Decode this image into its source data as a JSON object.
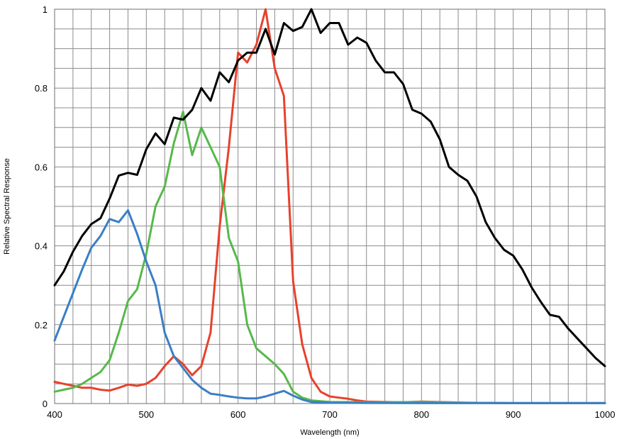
{
  "chart_data": {
    "type": "line",
    "title": "",
    "xlabel": "Wavelength (nm)",
    "ylabel": "Relative Spectral Response",
    "xlim": [
      400,
      1000
    ],
    "ylim": [
      0,
      1
    ],
    "x_ticks": [
      "400",
      "500",
      "600",
      "700",
      "800",
      "900",
      "1000"
    ],
    "y_ticks": [
      "0",
      "0.2",
      "0.4",
      "0.6",
      "0.8",
      "1"
    ],
    "grid": true,
    "legend": "none",
    "series": [
      {
        "color": "#e8412c",
        "points": [
          [
            400,
            0.055
          ],
          [
            410,
            0.05
          ],
          [
            420,
            0.045
          ],
          [
            430,
            0.04
          ],
          [
            440,
            0.04
          ],
          [
            450,
            0.035
          ],
          [
            460,
            0.033
          ],
          [
            470,
            0.04
          ],
          [
            480,
            0.048
          ],
          [
            490,
            0.045
          ],
          [
            500,
            0.05
          ],
          [
            510,
            0.065
          ],
          [
            520,
            0.095
          ],
          [
            530,
            0.12
          ],
          [
            540,
            0.1
          ],
          [
            550,
            0.072
          ],
          [
            560,
            0.095
          ],
          [
            570,
            0.18
          ],
          [
            580,
            0.45
          ],
          [
            590,
            0.65
          ],
          [
            600,
            0.89
          ],
          [
            610,
            0.865
          ],
          [
            620,
            0.91
          ],
          [
            630,
            1.0
          ],
          [
            640,
            0.85
          ],
          [
            650,
            0.78
          ],
          [
            660,
            0.31
          ],
          [
            670,
            0.15
          ],
          [
            680,
            0.065
          ],
          [
            690,
            0.03
          ],
          [
            700,
            0.018
          ],
          [
            710,
            0.015
          ],
          [
            720,
            0.012
          ],
          [
            730,
            0.008
          ],
          [
            740,
            0.005
          ],
          [
            760,
            0.004
          ],
          [
            780,
            0.003
          ],
          [
            800,
            0.005
          ],
          [
            850,
            0.002
          ],
          [
            900,
            0.001
          ],
          [
            950,
            0.001
          ],
          [
            1000,
            0.001
          ]
        ]
      },
      {
        "color": "#56b94a",
        "points": [
          [
            400,
            0.03
          ],
          [
            410,
            0.035
          ],
          [
            420,
            0.04
          ],
          [
            430,
            0.05
          ],
          [
            440,
            0.065
          ],
          [
            450,
            0.08
          ],
          [
            460,
            0.11
          ],
          [
            470,
            0.18
          ],
          [
            480,
            0.26
          ],
          [
            490,
            0.29
          ],
          [
            500,
            0.38
          ],
          [
            510,
            0.5
          ],
          [
            520,
            0.55
          ],
          [
            530,
            0.66
          ],
          [
            540,
            0.74
          ],
          [
            550,
            0.63
          ],
          [
            560,
            0.7
          ],
          [
            570,
            0.65
          ],
          [
            580,
            0.6
          ],
          [
            590,
            0.42
          ],
          [
            600,
            0.36
          ],
          [
            610,
            0.2
          ],
          [
            620,
            0.14
          ],
          [
            630,
            0.12
          ],
          [
            640,
            0.1
          ],
          [
            650,
            0.075
          ],
          [
            660,
            0.03
          ],
          [
            670,
            0.015
          ],
          [
            680,
            0.008
          ],
          [
            700,
            0.004
          ],
          [
            750,
            0.003
          ],
          [
            800,
            0.004
          ],
          [
            850,
            0.002
          ],
          [
            900,
            0.001
          ],
          [
            1000,
            0.001
          ]
        ]
      },
      {
        "color": "#3a7ec6",
        "points": [
          [
            400,
            0.16
          ],
          [
            410,
            0.22
          ],
          [
            420,
            0.28
          ],
          [
            430,
            0.34
          ],
          [
            440,
            0.395
          ],
          [
            450,
            0.425
          ],
          [
            460,
            0.468
          ],
          [
            470,
            0.46
          ],
          [
            480,
            0.49
          ],
          [
            490,
            0.43
          ],
          [
            500,
            0.36
          ],
          [
            510,
            0.3
          ],
          [
            520,
            0.18
          ],
          [
            530,
            0.12
          ],
          [
            540,
            0.09
          ],
          [
            550,
            0.06
          ],
          [
            560,
            0.04
          ],
          [
            570,
            0.025
          ],
          [
            580,
            0.022
          ],
          [
            590,
            0.018
          ],
          [
            600,
            0.015
          ],
          [
            610,
            0.013
          ],
          [
            620,
            0.013
          ],
          [
            630,
            0.018
          ],
          [
            640,
            0.025
          ],
          [
            650,
            0.032
          ],
          [
            660,
            0.02
          ],
          [
            670,
            0.01
          ],
          [
            680,
            0.004
          ],
          [
            700,
            0.002
          ],
          [
            800,
            0.001
          ],
          [
            900,
            0.001
          ],
          [
            1000,
            0.001
          ]
        ]
      },
      {
        "color": "#000000",
        "points": [
          [
            400,
            0.3
          ],
          [
            410,
            0.335
          ],
          [
            420,
            0.385
          ],
          [
            430,
            0.425
          ],
          [
            440,
            0.455
          ],
          [
            450,
            0.47
          ],
          [
            460,
            0.52
          ],
          [
            470,
            0.578
          ],
          [
            480,
            0.585
          ],
          [
            490,
            0.58
          ],
          [
            500,
            0.645
          ],
          [
            510,
            0.685
          ],
          [
            520,
            0.658
          ],
          [
            530,
            0.725
          ],
          [
            540,
            0.72
          ],
          [
            550,
            0.745
          ],
          [
            560,
            0.8
          ],
          [
            570,
            0.768
          ],
          [
            580,
            0.84
          ],
          [
            590,
            0.815
          ],
          [
            600,
            0.87
          ],
          [
            610,
            0.89
          ],
          [
            620,
            0.89
          ],
          [
            630,
            0.95
          ],
          [
            640,
            0.885
          ],
          [
            650,
            0.965
          ],
          [
            660,
            0.945
          ],
          [
            670,
            0.955
          ],
          [
            680,
            1.0
          ],
          [
            690,
            0.94
          ],
          [
            700,
            0.965
          ],
          [
            710,
            0.965
          ],
          [
            720,
            0.91
          ],
          [
            730,
            0.928
          ],
          [
            740,
            0.915
          ],
          [
            750,
            0.87
          ],
          [
            760,
            0.84
          ],
          [
            770,
            0.84
          ],
          [
            780,
            0.81
          ],
          [
            790,
            0.745
          ],
          [
            800,
            0.735
          ],
          [
            810,
            0.715
          ],
          [
            820,
            0.67
          ],
          [
            830,
            0.6
          ],
          [
            840,
            0.58
          ],
          [
            850,
            0.565
          ],
          [
            860,
            0.525
          ],
          [
            870,
            0.46
          ],
          [
            880,
            0.42
          ],
          [
            890,
            0.39
          ],
          [
            900,
            0.375
          ],
          [
            910,
            0.34
          ],
          [
            920,
            0.295
          ],
          [
            930,
            0.258
          ],
          [
            940,
            0.225
          ],
          [
            950,
            0.22
          ],
          [
            960,
            0.19
          ],
          [
            970,
            0.165
          ],
          [
            980,
            0.14
          ],
          [
            990,
            0.115
          ],
          [
            1000,
            0.095
          ]
        ]
      }
    ]
  }
}
